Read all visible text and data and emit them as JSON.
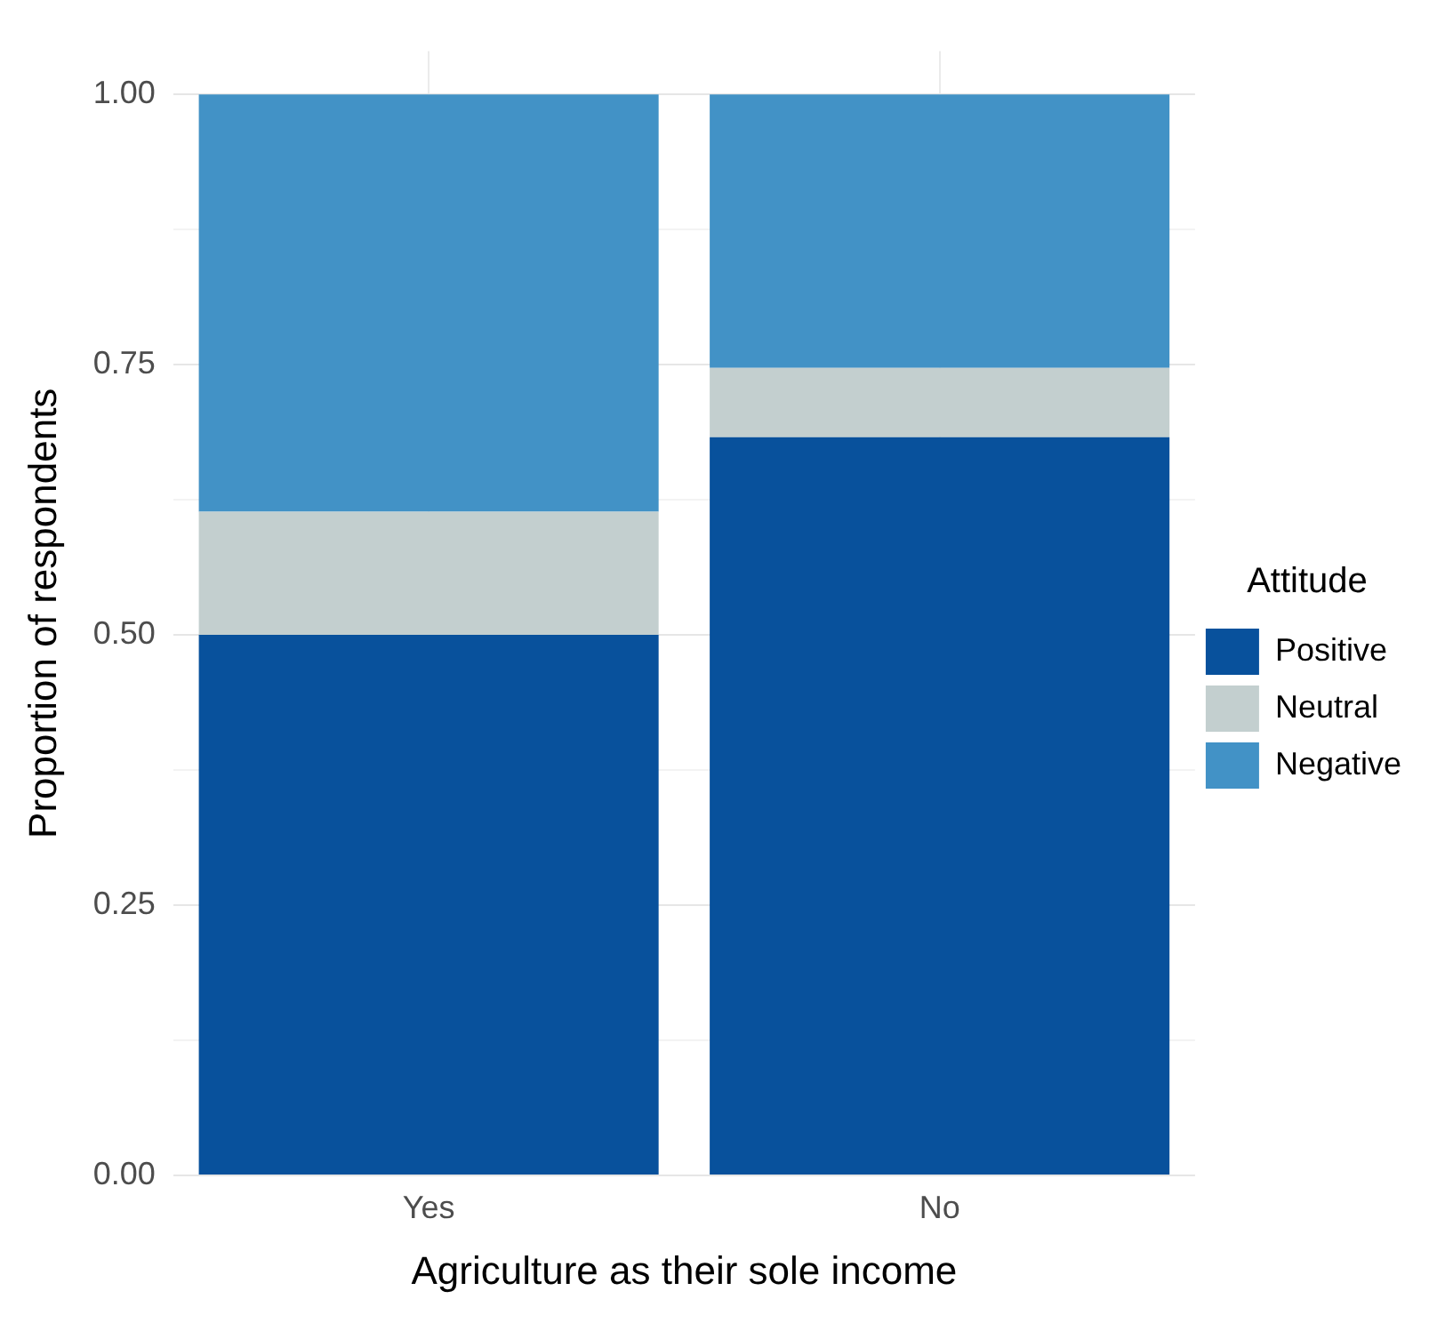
{
  "chart_data": {
    "type": "bar",
    "stacked": true,
    "xlabel": "Agriculture as their sole income",
    "ylabel": "Proportion of respondents",
    "legend_title": "Attitude",
    "categories": [
      "Yes",
      "No"
    ],
    "series": [
      {
        "name": "Positive",
        "color": "#08519c",
        "values": [
          0.5,
          0.683
        ]
      },
      {
        "name": "Neutral",
        "color": "#c3cfcf",
        "values": [
          0.114,
          0.064
        ]
      },
      {
        "name": "Negative",
        "color": "#4292c6",
        "values": [
          0.386,
          0.253
        ]
      }
    ],
    "ylim": [
      0,
      1.04
    ],
    "yticks": [
      {
        "value": 0,
        "label": "0.00"
      },
      {
        "value": 0.125,
        "label": null
      },
      {
        "value": 0.25,
        "label": "0.25"
      },
      {
        "value": 0.375,
        "label": null
      },
      {
        "value": 0.5,
        "label": "0.50"
      },
      {
        "value": 0.625,
        "label": null
      },
      {
        "value": 0.75,
        "label": "0.75"
      },
      {
        "value": 0.875,
        "label": null
      },
      {
        "value": 1,
        "label": "1.00"
      }
    ],
    "grid": true,
    "legend": "right"
  }
}
